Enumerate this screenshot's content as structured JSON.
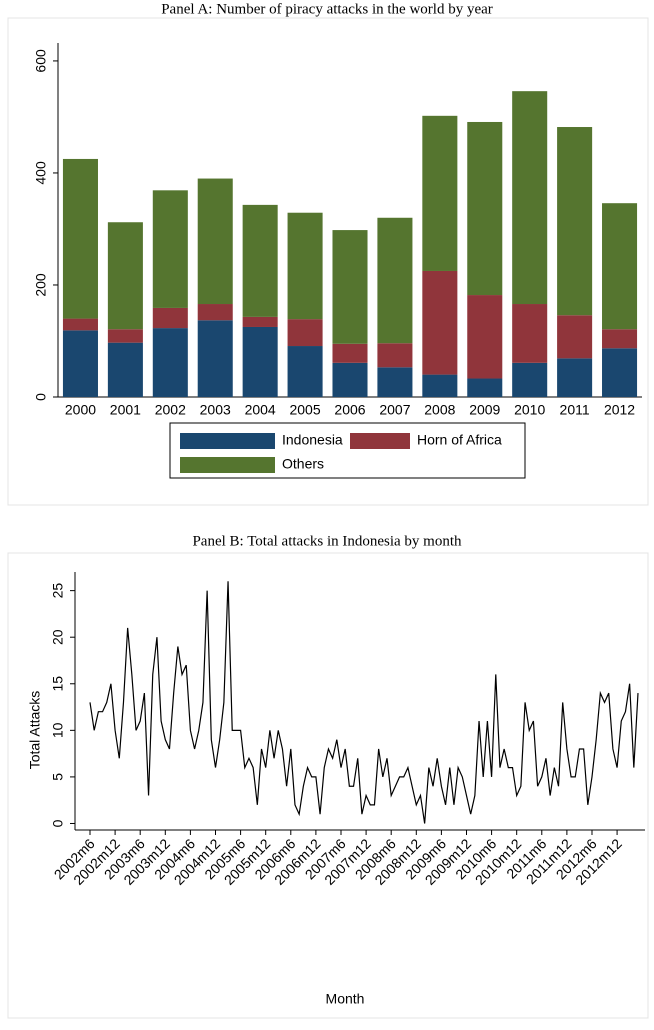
{
  "chart_data": [
    {
      "type": "stacked-bar",
      "title": "Panel A: Number of piracy attacks in the world by year",
      "categories": [
        "2000",
        "2001",
        "2002",
        "2003",
        "2004",
        "2005",
        "2006",
        "2007",
        "2008",
        "2009",
        "2010",
        "2011",
        "2012"
      ],
      "series": [
        {
          "name": "Indonesia",
          "color": "#1a476f",
          "values": [
            119,
            97,
            123,
            137,
            125,
            91,
            61,
            53,
            40,
            33,
            61,
            69,
            87
          ]
        },
        {
          "name": "Horn of Africa",
          "color": "#90353b",
          "values": [
            21,
            24,
            36,
            29,
            18,
            48,
            34,
            43,
            185,
            149,
            105,
            77,
            34
          ]
        },
        {
          "name": "Others",
          "color": "#55752f",
          "values": [
            285,
            191,
            210,
            224,
            200,
            190,
            203,
            224,
            277,
            309,
            380,
            336,
            225
          ]
        }
      ],
      "ylim": [
        0,
        632
      ],
      "yticks": [
        0,
        200,
        400,
        600
      ],
      "legend": "bottom"
    },
    {
      "type": "line",
      "title": "Panel B: Total attacks in Indonesia by month",
      "xlabel": "Month",
      "ylabel": "Total Attacks",
      "categories": [
        "2002m6",
        null,
        null,
        null,
        null,
        null,
        "2002m12",
        null,
        null,
        null,
        null,
        null,
        "2003m6",
        null,
        null,
        null,
        null,
        null,
        "2003m12",
        null,
        null,
        null,
        null,
        null,
        "2004m6",
        null,
        null,
        null,
        null,
        null,
        "2004m12",
        null,
        null,
        null,
        null,
        null,
        "2005m6",
        null,
        null,
        null,
        null,
        null,
        "2005m12",
        null,
        null,
        null,
        null,
        null,
        "2006m6",
        null,
        null,
        null,
        null,
        null,
        "2006m12",
        null,
        null,
        null,
        null,
        null,
        "2007m6",
        null,
        null,
        null,
        null,
        null,
        "2007m12",
        null,
        null,
        null,
        null,
        null,
        "2008m6",
        null,
        null,
        null,
        null,
        null,
        "2008m12",
        null,
        null,
        null,
        null,
        null,
        "2009m6",
        null,
        null,
        null,
        null,
        null,
        "2009m12",
        null,
        null,
        null,
        null,
        null,
        "2010m6",
        null,
        null,
        null,
        null,
        null,
        "2010m12",
        null,
        null,
        null,
        null,
        null,
        "2011m6",
        null,
        null,
        null,
        null,
        null,
        "2011m12",
        null,
        null,
        null,
        null,
        null,
        "2012m6",
        null,
        null,
        null,
        null,
        null,
        "2012m12",
        null,
        null,
        null,
        null,
        null
      ],
      "values": [
        13,
        10,
        12,
        12,
        13,
        15,
        10,
        7,
        13,
        21,
        16,
        10,
        11,
        14,
        3,
        16,
        20,
        11,
        9,
        8,
        14,
        19,
        16,
        17,
        10,
        8,
        10,
        13,
        25,
        9,
        6,
        9,
        13,
        26,
        10,
        10,
        10,
        6,
        7,
        6,
        2,
        8,
        6,
        10,
        7,
        10,
        8,
        4,
        8,
        2,
        1,
        4,
        6,
        5,
        5,
        1,
        6,
        8,
        7,
        9,
        6,
        8,
        4,
        4,
        7,
        1,
        3,
        2,
        2,
        8,
        5,
        7,
        3,
        4,
        5,
        5,
        6,
        4,
        2,
        3,
        0,
        6,
        4,
        7,
        4,
        2,
        6,
        2,
        6,
        5,
        3,
        1,
        3,
        11,
        5,
        11,
        5,
        16,
        6,
        8,
        6,
        6,
        3,
        4,
        13,
        10,
        11,
        4,
        5,
        7,
        3,
        6,
        4,
        13,
        8,
        5,
        5,
        8,
        8,
        2,
        5,
        9,
        14,
        13,
        14,
        8,
        6,
        11,
        12,
        15,
        6,
        14
      ],
      "color": "#000000",
      "ylim": [
        -0.7,
        27
      ],
      "yticks": [
        0,
        5,
        10,
        15,
        20,
        25
      ]
    }
  ]
}
